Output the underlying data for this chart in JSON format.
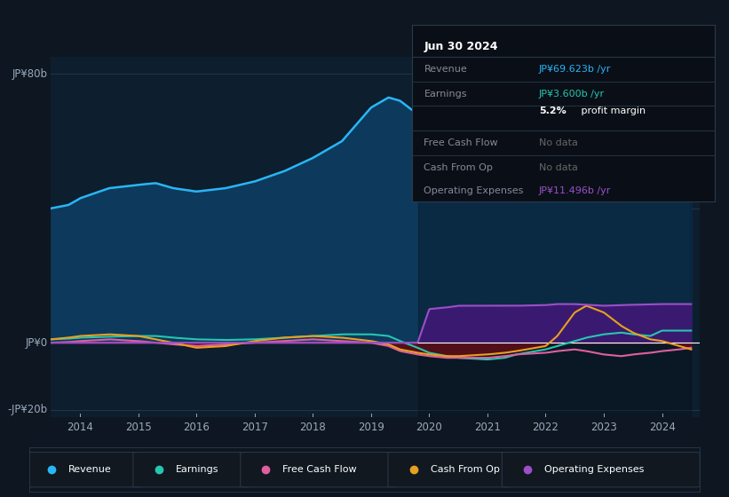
{
  "bg_color": "#0e1621",
  "plot_bg_color": "#0d1e2e",
  "ylabel_top": "JP¥80b",
  "ylabel_bottom": "-JP¥20b",
  "y0_label": "JP¥0",
  "tooltip": {
    "date": "Jun 30 2024",
    "revenue_val": "JP¥69.623b /yr",
    "earnings_val": "JP¥3.600b /yr",
    "profit_margin": "5.2% profit margin",
    "fcf_val": "No data",
    "cashop_val": "No data",
    "opex_val": "JP¥11.496b /yr"
  },
  "legend": [
    {
      "label": "Revenue",
      "color": "#29b6f6"
    },
    {
      "label": "Earnings",
      "color": "#26c6b0"
    },
    {
      "label": "Free Cash Flow",
      "color": "#e05fa0"
    },
    {
      "label": "Cash From Op",
      "color": "#e8a020"
    },
    {
      "label": "Operating Expenses",
      "color": "#9b4fc8"
    }
  ],
  "revenue_color": "#29b6f6",
  "revenue_fill": "#0d3a5c",
  "earnings_color": "#26c6b0",
  "fcf_color": "#e05fa0",
  "cashop_color": "#e8a020",
  "opex_color": "#9b4fc8",
  "opex_fill": "#3a1a70",
  "cashop_fill_neg": "#5a1520"
}
